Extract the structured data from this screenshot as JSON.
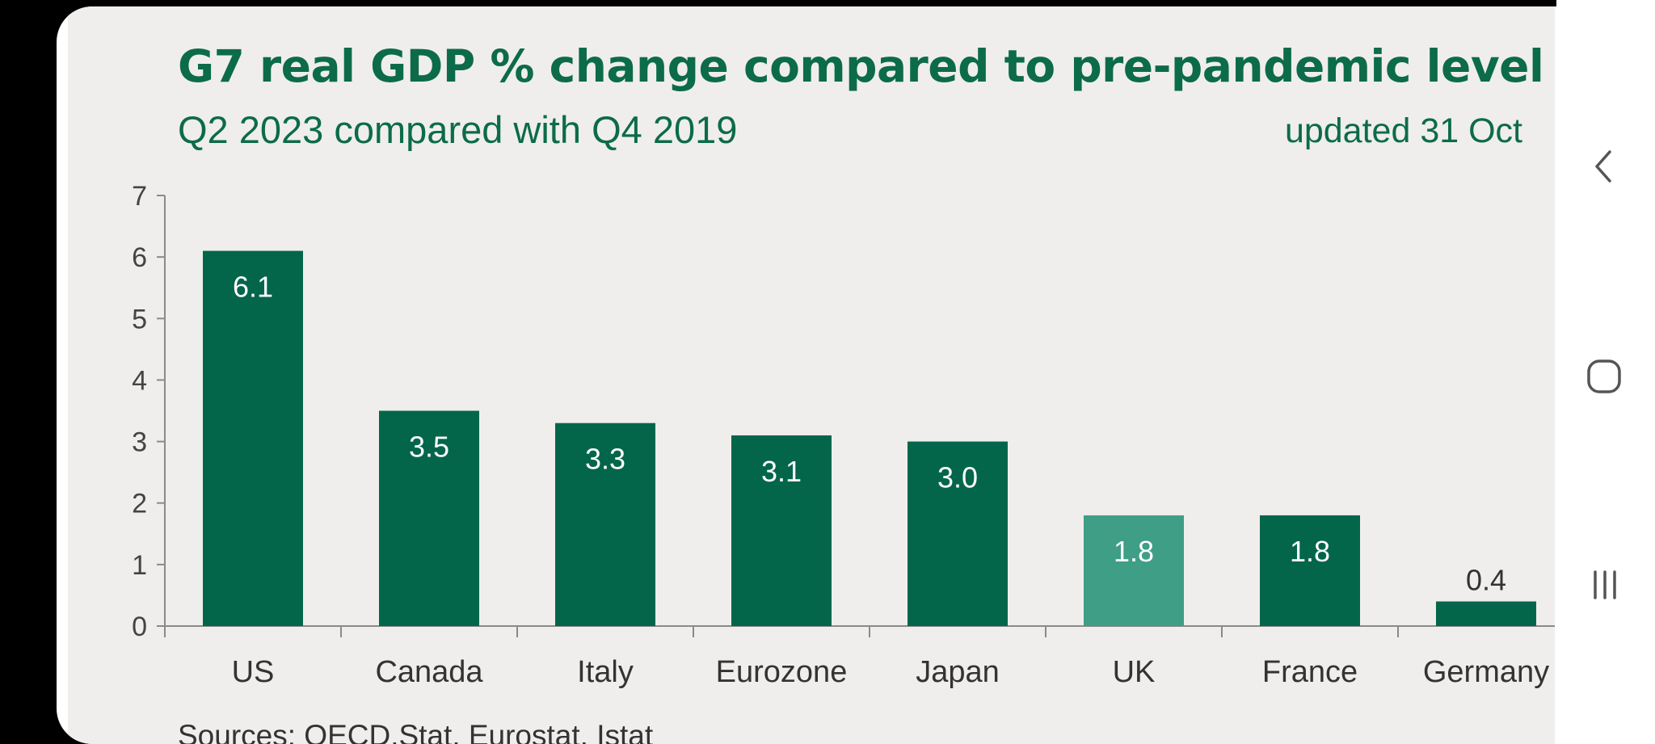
{
  "chart_data": {
    "type": "bar",
    "title": "G7 real GDP % change compared to pre-pandemic level",
    "subtitle": "Q2 2023 compared with Q4 2019",
    "note": "updated 31 Oct",
    "source": "Sources: OECD.Stat, Eurostat, Istat",
    "categories": [
      "US",
      "Canada",
      "Italy",
      "Eurozone",
      "Japan",
      "UK",
      "France",
      "Germany"
    ],
    "values": [
      6.1,
      3.5,
      3.3,
      3.1,
      3.0,
      1.8,
      1.8,
      0.4
    ],
    "value_labels": [
      "6.1",
      "3.5",
      "3.3",
      "3.1",
      "3.0",
      "1.8",
      "1.8",
      "0.4"
    ],
    "highlight": "UK",
    "ylim": [
      0,
      7
    ],
    "yticks": [
      "0",
      "1",
      "2",
      "3",
      "4",
      "5",
      "6",
      "7"
    ],
    "grid": false,
    "colors": {
      "bar": "#03664a",
      "highlight": "#3f9e86"
    }
  },
  "nav": {
    "back_icon": "chevron-left-icon",
    "home_icon": "rounded-square-icon",
    "recents_icon": "three-bars-icon"
  }
}
